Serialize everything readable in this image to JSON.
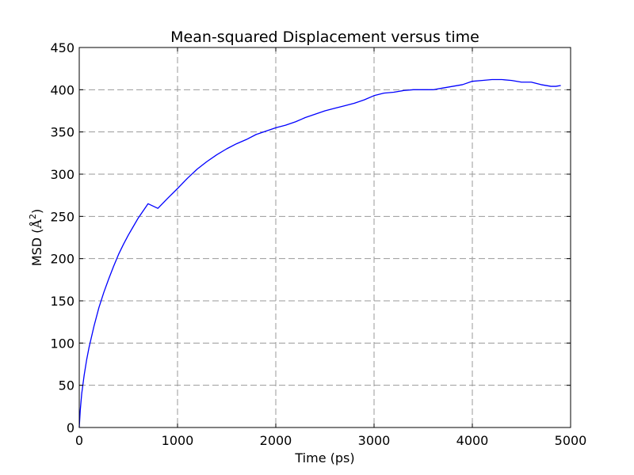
{
  "chart_data": {
    "type": "line",
    "title": "Mean-squared Displacement versus time",
    "xlabel": "Time (ps)",
    "ylabel_text": "MSD (",
    "ylabel_unit_base": "Å",
    "ylabel_unit_exp": "2",
    "ylabel_close": ")",
    "xlim": [
      0,
      5000
    ],
    "ylim": [
      0,
      450
    ],
    "xticks": [
      0,
      1000,
      2000,
      3000,
      4000,
      5000
    ],
    "yticks": [
      0,
      50,
      100,
      150,
      200,
      250,
      300,
      350,
      400,
      450
    ],
    "xtick_labels": [
      "0",
      "1000",
      "2000",
      "3000",
      "4000",
      "5000"
    ],
    "ytick_labels": [
      "0",
      "50",
      "100",
      "150",
      "200",
      "250",
      "300",
      "350",
      "400",
      "450"
    ],
    "grid": true,
    "line_color": "#0000ff",
    "series": [
      {
        "x": [
          0,
          10,
          25,
          50,
          75,
          100,
          150,
          200,
          250,
          300,
          350,
          400,
          450,
          500,
          550,
          600,
          700,
          800,
          900,
          1000,
          1100,
          1200,
          1300,
          1400,
          1500,
          1600,
          1700,
          1800,
          1900,
          2000,
          2100,
          2200,
          2300,
          2400,
          2500,
          2600,
          2700,
          2800,
          2900,
          3000,
          3100,
          3200,
          3300,
          3400,
          3500,
          3600,
          3700,
          3800,
          3900,
          4000,
          4100,
          4200,
          4300,
          4400,
          4500,
          4600,
          4700,
          4800,
          4850,
          4900
        ],
        "y": [
          0,
          20,
          40,
          62,
          80,
          95,
          120,
          142,
          160,
          176,
          191,
          205,
          217,
          228,
          238,
          248,
          265,
          259.5,
          271.5,
          283,
          295,
          306,
          315,
          323,
          330,
          336,
          341,
          347,
          351,
          355,
          358,
          362,
          367,
          371,
          375,
          378,
          381,
          384,
          388,
          393,
          396,
          397,
          399,
          400,
          400,
          400,
          402,
          404,
          406,
          410,
          411,
          412,
          412,
          411,
          409,
          409,
          406,
          404,
          404,
          405
        ]
      }
    ]
  }
}
